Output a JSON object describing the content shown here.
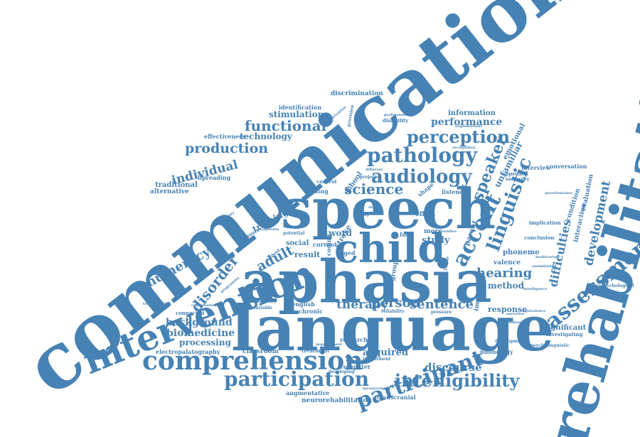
{
  "colors": {
    "word": "#4682b4",
    "background": "#ffffff"
  },
  "words": {
    "communication": "communication",
    "rehabilitation": "rehabilitation",
    "language": "language",
    "aphasia": "aphasia",
    "speech": "speech",
    "intervention": "intervention",
    "child": "child",
    "comprehension": "comprehension",
    "participation": "participation",
    "participant": "participant",
    "intelligibility": "intelligibility",
    "assessment": "assessment",
    "pathology": "pathology",
    "audiology": "audiology",
    "perception": "perception",
    "functional": "functional",
    "production": "production",
    "individual": "individual",
    "accent": "accent",
    "linguistic": "linguistic",
    "speaker": "speaker",
    "science": "science",
    "disorder": "disorder",
    "numeracy": "numeracy",
    "adult": "adult",
    "person": "person",
    "therapy": "therapy",
    "sentence": "sentence",
    "hearing": "hearing",
    "development": "development",
    "difficulties": "difficulties",
    "discourse": "discourse",
    "acquired": "acquired",
    "background": "background",
    "biomedicine": "biomedicine",
    "processing": "processing",
    "technology": "technology",
    "performance": "performance",
    "stimulation": "stimulation",
    "information": "information",
    "discrimination": "discrimination",
    "identification": "identification",
    "effectiveness": "effectiveness",
    "traditional": "traditional",
    "alternative": "alternative",
    "lipreading": "lipreading",
    "training": "training",
    "method": "method",
    "response": "response",
    "phoneme": "phoneme",
    "study": "study",
    "word": "word",
    "result": "result",
    "research": "research",
    "classroom": "classroom",
    "electropalatography": "electropalatography",
    "augmentative": "augmentative",
    "neurorehabilitation": "neurorehabilitation",
    "transcranial": "transcranial",
    "computer": "computer",
    "impairment": "impairment",
    "developing": "developing",
    "measurement": "measurement",
    "treatment": "treatment",
    "phonology": "phonology",
    "psycholinguistic": "psycholinguistic",
    "significant": "significant",
    "investigating": "investigating",
    "neuropsychological": "neuropsychological",
    "valence": "valence",
    "conversation": "conversation",
    "interview": "interview",
    "condition": "condition",
    "interaction": "interaction",
    "evaluation": "evaluation",
    "unfamiliar": "unfamiliar",
    "emotional": "emotional",
    "school": "school",
    "social": "social",
    "connected": "connected",
    "comparison": "comparison",
    "conversational": "conversational",
    "chronic": "chronic",
    "english": "english",
    "auditory": "auditory",
    "variable": "variable",
    "disabled": "disabled",
    "stroke": "stroke",
    "coding": "coding",
    "aged": "aged",
    "current": "current",
    "more": "more",
    "fdcs": "fdcs",
    "effect": "effect",
    "finding": "finding",
    "control": "control",
    "shape": "shape",
    "listener": "listener",
    "university": "university",
    "approach": "approach",
    "implication": "implication",
    "conclusion": "conclusion",
    "multivariate": "multivariate",
    "impact": "impact",
    "parent": "parent",
    "professional": "professional",
    "disability": "disability",
    "provision": "provision",
    "categorization": "categorization",
    "recognition": "recognition",
    "organisations": "organisations",
    "different": "different",
    "project": "project",
    "potential": "potential",
    "measure": "measure",
    "student": "student",
    "reliability": "reliability",
    "pressure": "pressure",
    "studies": "studies",
    "group": "group",
    "ability": "ability",
    "skill": "skill",
    "factor": "factor",
    "narrative": "narrative",
    "intelligence": "intelligence",
    "assimilation": "assimilation",
    "questionnaire": "questionnaire",
    "dysphonia": "dysphonia",
    "programme": "programme",
    "preliminary": "preliminary",
    "improvement": "improvement",
    "equivalence": "equivalence",
    "adolescent": "adolescent",
    "development2": "development"
  }
}
